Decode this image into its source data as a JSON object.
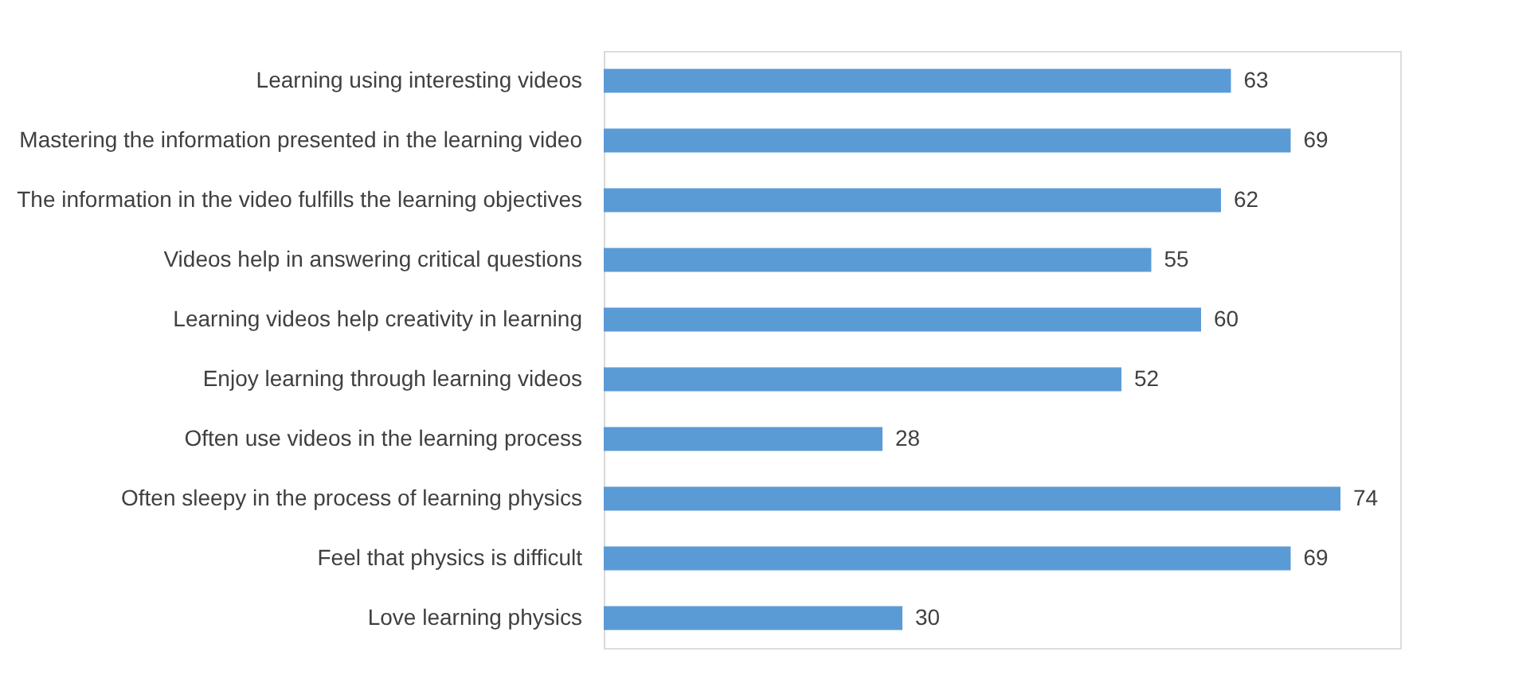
{
  "chart_data": {
    "type": "bar",
    "orientation": "horizontal",
    "categories": [
      "Learning using interesting videos",
      "Mastering the information presented in the learning video",
      "The information in the video fulfills the learning objectives",
      "Videos help in answering critical questions",
      "Learning videos help creativity in learning",
      "Enjoy learning through learning videos",
      "Often use videos in the learning process",
      "Often sleepy in the process of learning physics",
      "Feel that physics is difficult",
      "Love learning physics"
    ],
    "values": [
      63,
      69,
      62,
      55,
      60,
      52,
      28,
      74,
      69,
      30
    ],
    "color": "#5b9bd5",
    "data_labels": true,
    "xlim": [
      0,
      80
    ],
    "tick_labels": "y"
  }
}
